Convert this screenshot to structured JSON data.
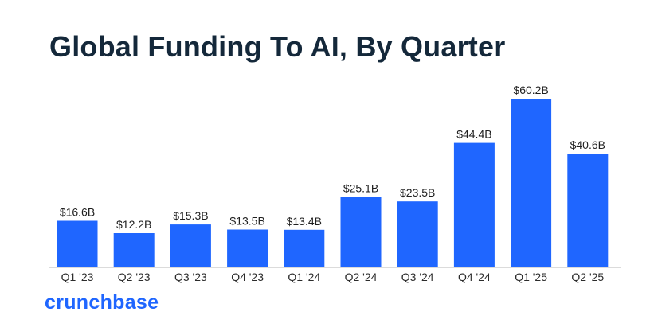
{
  "title": "Global Funding To AI, By Quarter",
  "brand": "crunchbase",
  "colors": {
    "bar": "#1f66ff",
    "axis": "#cfcfcf",
    "title": "#14283a",
    "brand": "#1f66ff"
  },
  "chart_data": {
    "type": "bar",
    "title": "Global Funding To AI, By Quarter",
    "xlabel": "",
    "ylabel": "",
    "categories": [
      "Q1 '23",
      "Q2 '23",
      "Q3 '23",
      "Q4 '23",
      "Q1 '24",
      "Q2 '24",
      "Q3 '24",
      "Q4 '24",
      "Q1 '25",
      "Q2 '25"
    ],
    "values": [
      16.6,
      12.2,
      15.3,
      13.5,
      13.4,
      25.1,
      23.5,
      44.4,
      60.2,
      40.6
    ],
    "data_labels": [
      "$16.6B",
      "$12.2B",
      "$15.3B",
      "$13.5B",
      "$13.4B",
      "$25.1B",
      "$23.5B",
      "$44.4B",
      "$60.2B",
      "$40.6B"
    ],
    "unit": "USD billions",
    "ylim": [
      0,
      60.2
    ],
    "grid": false,
    "legend": "none"
  }
}
